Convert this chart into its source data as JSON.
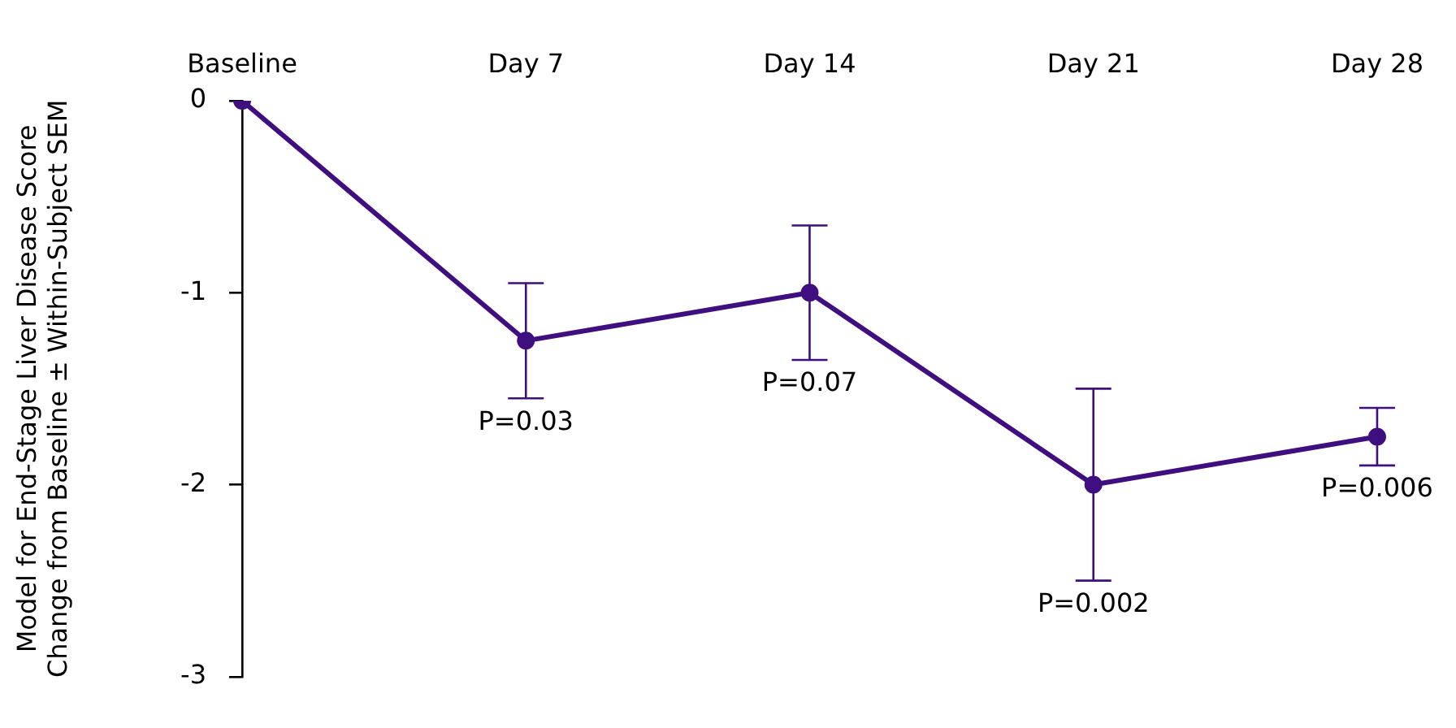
{
  "chart_data": {
    "type": "line",
    "ylabel": "Model for End-Stage Liver Disease Score\nChange from Baseline ± Within-Subject SEM",
    "categories": [
      "Baseline",
      "Day 7",
      "Day 14",
      "Day 21",
      "Day 28"
    ],
    "series": [
      {
        "color": "#3f0f80",
        "values": [
          0,
          -1.25,
          -1.0,
          -2.0,
          -1.75
        ],
        "errors": [
          null,
          0.3,
          0.35,
          0.5,
          0.15
        ]
      }
    ],
    "ylim": [
      -3,
      0
    ],
    "yticks": [
      -3,
      -2,
      -1,
      0
    ],
    "grid": false,
    "legend": false,
    "marker": "circle",
    "line_style": "solid",
    "annotations": [
      {
        "text": "P=0.03",
        "x": "Day 7",
        "y": -1.55
      },
      {
        "text": "P=0.07",
        "x": "Day 14",
        "y": -1.35
      },
      {
        "text": "P=0.002",
        "x": "Day 21",
        "y": -2.5
      },
      {
        "text": "P=0.006",
        "x": "Day 28",
        "y": -1.9
      }
    ]
  }
}
